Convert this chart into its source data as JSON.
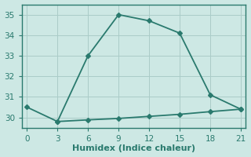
{
  "line1_x": [
    0,
    3,
    6,
    9,
    12,
    15,
    18,
    21
  ],
  "line1_y": [
    30.5,
    29.8,
    33.0,
    35.0,
    34.7,
    34.1,
    31.1,
    30.4
  ],
  "line2_x": [
    3,
    6,
    9,
    12,
    15,
    18,
    21
  ],
  "line2_y": [
    29.8,
    29.88,
    29.95,
    30.05,
    30.15,
    30.28,
    30.4
  ],
  "color": "#2a7a6e",
  "bg_color": "#cde8e4",
  "grid_color": "#aaccc8",
  "spine_color": "#2a7a6e",
  "xlabel": "Humidex (Indice chaleur)",
  "xlim": [
    -0.5,
    21.5
  ],
  "ylim": [
    29.5,
    35.5
  ],
  "xticks": [
    0,
    3,
    6,
    9,
    12,
    15,
    18,
    21
  ],
  "yticks": [
    30,
    31,
    32,
    33,
    34,
    35
  ],
  "markersize": 3,
  "linewidth": 1.3,
  "xlabel_fontsize": 8,
  "tick_fontsize": 7.5
}
